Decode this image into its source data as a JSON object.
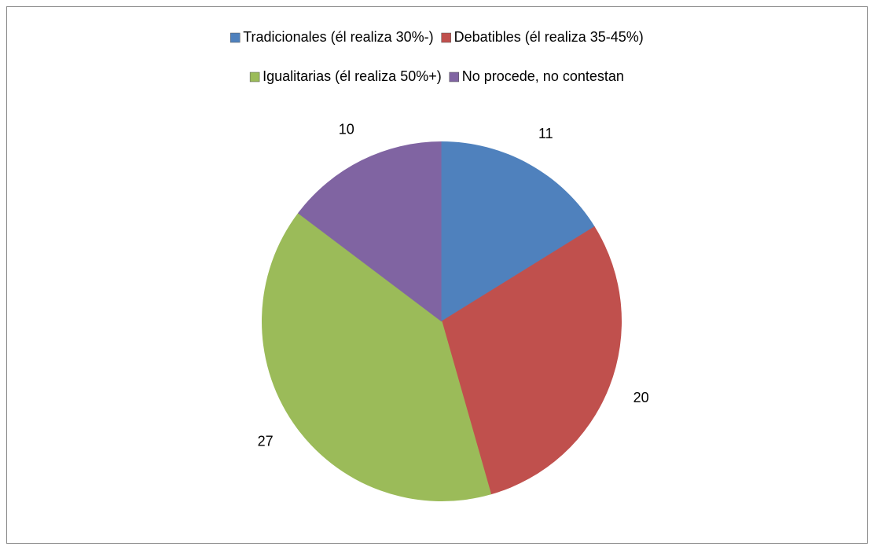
{
  "chart_data": {
    "type": "pie",
    "categories": [
      "Tradicionales (él realiza 30%-)",
      "Debatibles (él realiza 35-45%)",
      "Igualitarias (él realiza 50%+)",
      "No procede, no contestan"
    ],
    "values": [
      11,
      20,
      27,
      10
    ],
    "colors": [
      "#4f81bd",
      "#c0504d",
      "#9bbb59",
      "#8064a2"
    ],
    "legend": "top"
  }
}
